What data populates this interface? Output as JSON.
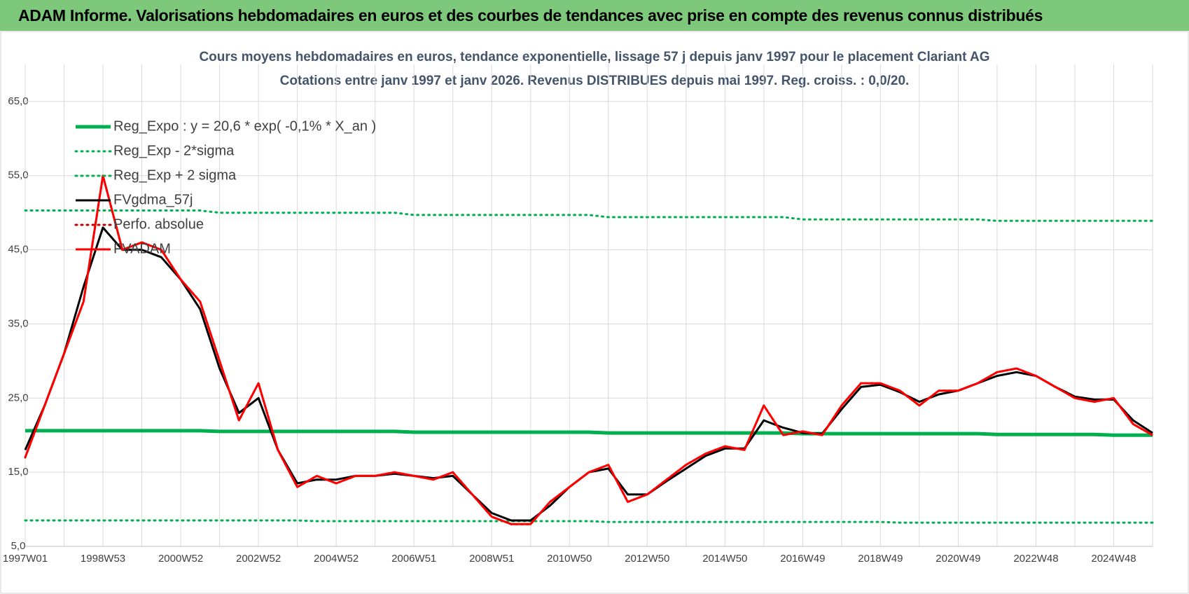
{
  "page_title": "ADAM Informe. Valorisations hebdomadaires en euros et des courbes de tendances avec prise en compte des revenus connus distribués",
  "chart_data": {
    "type": "line",
    "title": "Cours moyens hebdomadaires en euros, tendance exponentielle, lissage 57 j depuis janv 1997 pour le placement Clariant AG",
    "subtitle": "Cotations entre janv 1997 et janv 2026. Revenus DISTRIBUES depuis mai 1997. Reg. croiss. : 0,0/20.",
    "categories": [
      "1997W01",
      null,
      null,
      null,
      "1998W53",
      null,
      null,
      null,
      "2000W52",
      null,
      null,
      null,
      "2002W52",
      null,
      null,
      null,
      "2004W52",
      null,
      null,
      null,
      "2006W51",
      null,
      null,
      null,
      "2008W51",
      null,
      null,
      null,
      "2010W50",
      null,
      null,
      null,
      "2012W50",
      null,
      null,
      null,
      "2014W50",
      null,
      null,
      null,
      "2016W49",
      null,
      null,
      null,
      "2018W49",
      null,
      null,
      null,
      "2020W49",
      null,
      null,
      null,
      "2022W48",
      null,
      null,
      null,
      "2024W48",
      null,
      null
    ],
    "ylim": [
      5,
      70
    ],
    "yticks": [
      {
        "value": 5,
        "label": "5,0"
      },
      {
        "value": 15,
        "label": "15,0"
      },
      {
        "value": 25,
        "label": "25,0"
      },
      {
        "value": 35,
        "label": "35,0"
      },
      {
        "value": 45,
        "label": "45,0"
      },
      {
        "value": 55,
        "label": "55,0"
      },
      {
        "value": 65,
        "label": "65,0"
      }
    ],
    "grid": true,
    "legend": "upper-left",
    "series": [
      {
        "name": "Reg_Expo : y = 20,6 * exp( -0,1% *  X_an )",
        "color": "#00b050",
        "dash": "solid",
        "values": [
          20.6,
          20.6,
          20.6,
          20.6,
          20.6,
          20.6,
          20.6,
          20.6,
          20.6,
          20.6,
          20.5,
          20.5,
          20.5,
          20.5,
          20.5,
          20.5,
          20.5,
          20.5,
          20.5,
          20.5,
          20.4,
          20.4,
          20.4,
          20.4,
          20.4,
          20.4,
          20.4,
          20.4,
          20.4,
          20.4,
          20.3,
          20.3,
          20.3,
          20.3,
          20.3,
          20.3,
          20.3,
          20.3,
          20.3,
          20.3,
          20.2,
          20.2,
          20.2,
          20.2,
          20.2,
          20.2,
          20.2,
          20.2,
          20.2,
          20.2,
          20.1,
          20.1,
          20.1,
          20.1,
          20.1,
          20.1,
          20.0,
          20.0,
          20.0
        ]
      },
      {
        "name": "Reg_Exp - 2*sigma",
        "color": "#00b050",
        "dash": "dotted",
        "values": [
          8.5,
          8.5,
          8.5,
          8.5,
          8.5,
          8.5,
          8.5,
          8.5,
          8.5,
          8.5,
          8.5,
          8.5,
          8.5,
          8.5,
          8.5,
          8.4,
          8.4,
          8.4,
          8.4,
          8.4,
          8.4,
          8.4,
          8.4,
          8.4,
          8.4,
          8.4,
          8.4,
          8.4,
          8.4,
          8.4,
          8.3,
          8.3,
          8.3,
          8.3,
          8.3,
          8.3,
          8.3,
          8.3,
          8.3,
          8.3,
          8.3,
          8.3,
          8.3,
          8.3,
          8.3,
          8.2,
          8.2,
          8.2,
          8.2,
          8.2,
          8.2,
          8.2,
          8.2,
          8.2,
          8.2,
          8.2,
          8.2,
          8.2,
          8.2
        ]
      },
      {
        "name": "Reg_Exp + 2 sigma",
        "color": "#00b050",
        "dash": "dotted",
        "values": [
          50.3,
          50.3,
          50.3,
          50.3,
          50.3,
          50.3,
          50.3,
          50.3,
          50.3,
          50.3,
          50.0,
          50.0,
          50.0,
          50.0,
          50.0,
          50.0,
          50.0,
          50.0,
          50.0,
          50.0,
          49.7,
          49.7,
          49.7,
          49.7,
          49.7,
          49.7,
          49.7,
          49.7,
          49.7,
          49.7,
          49.4,
          49.4,
          49.4,
          49.4,
          49.4,
          49.4,
          49.4,
          49.4,
          49.4,
          49.4,
          49.1,
          49.1,
          49.1,
          49.1,
          49.1,
          49.1,
          49.1,
          49.1,
          49.1,
          49.1,
          48.9,
          48.9,
          48.9,
          48.9,
          48.9,
          48.9,
          48.9,
          48.9,
          48.9
        ]
      },
      {
        "name": "FVgdma_57j",
        "color": "#000000",
        "dash": "solid",
        "values": [
          18,
          24,
          31,
          40,
          48,
          45,
          45,
          44,
          41,
          37,
          29,
          23,
          25,
          18,
          13.5,
          14,
          14,
          14.5,
          14.5,
          14.8,
          14.5,
          14.2,
          14.5,
          12,
          9.5,
          8.5,
          8.5,
          10.5,
          13,
          15,
          15.5,
          12,
          12,
          13.8,
          15.5,
          17.2,
          18.2,
          18.2,
          22,
          21,
          20.3,
          20.2,
          23.5,
          26.5,
          26.8,
          25.8,
          24.5,
          25.5,
          26,
          27,
          28,
          28.5,
          28,
          26.5,
          25.2,
          24.8,
          24.8,
          22,
          20.3
        ]
      },
      {
        "name": "Perfo. absolue",
        "color": "#c00000",
        "dash": "dotted",
        "values": [
          17,
          24,
          31,
          38,
          55,
          45,
          46,
          45,
          41,
          38,
          30,
          22,
          27,
          18,
          13,
          14.5,
          13.5,
          14.5,
          14.5,
          15,
          14.5,
          14,
          15,
          12,
          9,
          8,
          8,
          11,
          13,
          15,
          16,
          11,
          12,
          14,
          16,
          17.5,
          18.5,
          18,
          24,
          20,
          20.5,
          20,
          24,
          27,
          27,
          26,
          24,
          26,
          26,
          27,
          28.5,
          29,
          28,
          26.5,
          25,
          24.5,
          25,
          21.5,
          20
        ]
      },
      {
        "name": "FVADAM",
        "color": "#ff0000",
        "dash": "solid",
        "values": [
          17,
          24,
          31,
          38,
          55,
          45,
          46,
          45,
          41,
          38,
          30,
          22,
          27,
          18,
          13,
          14.5,
          13.5,
          14.5,
          14.5,
          15,
          14.5,
          14,
          15,
          12,
          9,
          8,
          8,
          11,
          13,
          15,
          16,
          11,
          12,
          14,
          16,
          17.5,
          18.5,
          18,
          24,
          20,
          20.5,
          20,
          24,
          27,
          27,
          26,
          24,
          26,
          26,
          27,
          28.5,
          29,
          28,
          26.5,
          25,
          24.5,
          25,
          21.5,
          20
        ]
      }
    ]
  }
}
